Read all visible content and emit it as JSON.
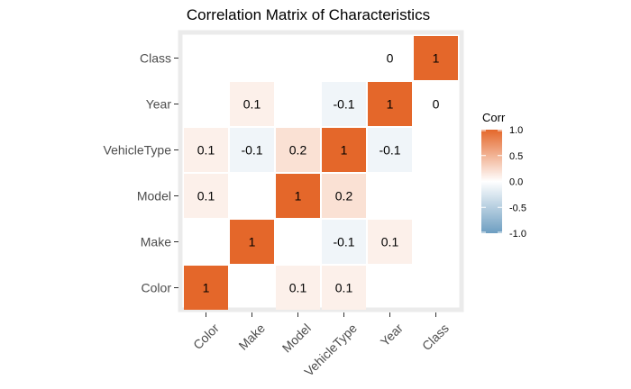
{
  "chart_data": {
    "type": "heatmap",
    "title": "Correlation Matrix of Characteristics",
    "xlabel": "",
    "ylabel": "",
    "variables": [
      "Color",
      "Make",
      "Model",
      "VehicleType",
      "Year",
      "Class"
    ],
    "cells": [
      {
        "row": "Color",
        "col": "Color",
        "value": 1,
        "label": "1"
      },
      {
        "row": "Color",
        "col": "Model",
        "value": 0.1,
        "label": "0.1"
      },
      {
        "row": "Color",
        "col": "VehicleType",
        "value": 0.1,
        "label": "0.1"
      },
      {
        "row": "Make",
        "col": "Make",
        "value": 1,
        "label": "1"
      },
      {
        "row": "Make",
        "col": "VehicleType",
        "value": -0.1,
        "label": "-0.1"
      },
      {
        "row": "Make",
        "col": "Year",
        "value": 0.1,
        "label": "0.1"
      },
      {
        "row": "Model",
        "col": "Color",
        "value": 0.1,
        "label": "0.1"
      },
      {
        "row": "Model",
        "col": "Model",
        "value": 1,
        "label": "1"
      },
      {
        "row": "Model",
        "col": "VehicleType",
        "value": 0.2,
        "label": "0.2"
      },
      {
        "row": "VehicleType",
        "col": "Color",
        "value": 0.1,
        "label": "0.1"
      },
      {
        "row": "VehicleType",
        "col": "Make",
        "value": -0.1,
        "label": "-0.1"
      },
      {
        "row": "VehicleType",
        "col": "Model",
        "value": 0.2,
        "label": "0.2"
      },
      {
        "row": "VehicleType",
        "col": "VehicleType",
        "value": 1,
        "label": "1"
      },
      {
        "row": "VehicleType",
        "col": "Year",
        "value": -0.1,
        "label": "-0.1"
      },
      {
        "row": "Year",
        "col": "Make",
        "value": 0.1,
        "label": "0.1"
      },
      {
        "row": "Year",
        "col": "VehicleType",
        "value": -0.1,
        "label": "-0.1"
      },
      {
        "row": "Year",
        "col": "Year",
        "value": 1,
        "label": "1"
      },
      {
        "row": "Year",
        "col": "Class",
        "value": 0,
        "label": "0"
      },
      {
        "row": "Class",
        "col": "Year",
        "value": 0,
        "label": "0"
      },
      {
        "row": "Class",
        "col": "Class",
        "value": 1,
        "label": "1"
      }
    ],
    "legend": {
      "title": "Corr",
      "placement": "right",
      "ticks": [
        "1.0",
        "0.5",
        "0.0",
        "-0.5",
        "-1.0"
      ],
      "range": [
        -1,
        1
      ]
    },
    "colors": {
      "positive": "#E4672A",
      "negative": "#6D9EC1",
      "midpoint": "#FFFFFF",
      "panel_border": "#EBEBEB"
    },
    "grid": false
  }
}
